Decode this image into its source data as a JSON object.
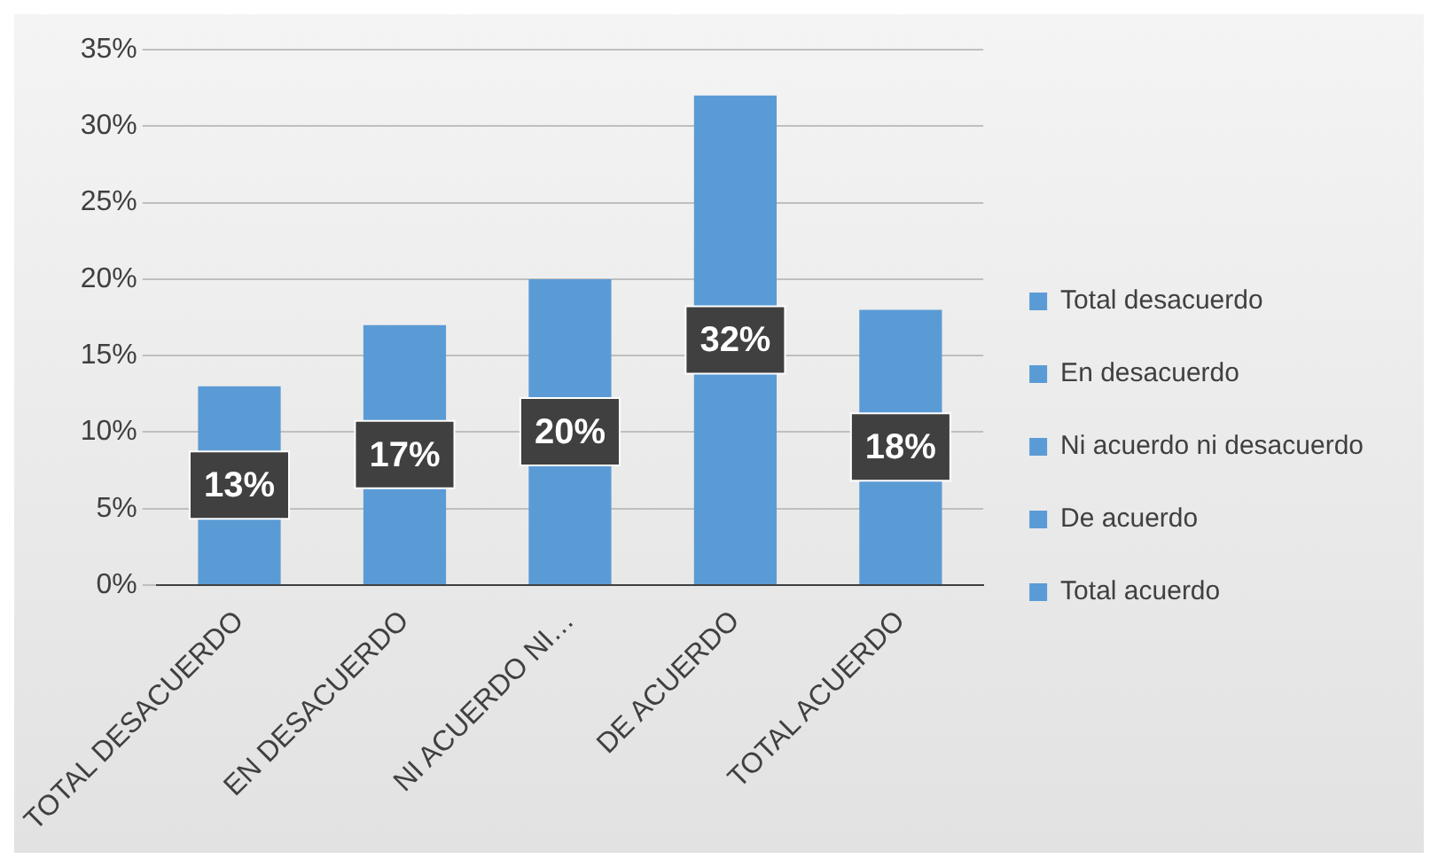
{
  "chart_data": {
    "type": "bar",
    "stacked": true,
    "categories": [
      "TOTAL DESACUERDO",
      "EN DESACUERDO",
      "NI ACUERDO NI…",
      "DE ACUERDO",
      "TOTAL ACUERDO"
    ],
    "series": [
      {
        "name": "Total desacuerdo",
        "color": "#5b9bd5",
        "values": [
          13,
          null,
          null,
          null,
          null
        ],
        "value_labels": [
          "13%",
          null,
          null,
          null,
          null
        ]
      },
      {
        "name": "En desacuerdo",
        "color": "#5b9bd5",
        "values": [
          null,
          17,
          null,
          null,
          null
        ],
        "value_labels": [
          null,
          "17%",
          null,
          null,
          null
        ]
      },
      {
        "name": "Ni acuerdo ni desacuerdo",
        "color": "#5b9bd5",
        "values": [
          null,
          null,
          20,
          null,
          null
        ],
        "value_labels": [
          null,
          null,
          "20%",
          null,
          null
        ]
      },
      {
        "name": "De acuerdo",
        "color": "#5b9bd5",
        "values": [
          null,
          null,
          null,
          32,
          null
        ],
        "value_labels": [
          null,
          null,
          null,
          "32%",
          null
        ]
      },
      {
        "name": "Total acuerdo",
        "color": "#5b9bd5",
        "values": [
          null,
          null,
          null,
          null,
          18
        ],
        "value_labels": [
          null,
          null,
          null,
          null,
          "18%"
        ]
      }
    ],
    "ylim": [
      0,
      35
    ],
    "yticks": [
      {
        "value": 0,
        "label": "0%"
      },
      {
        "value": 5,
        "label": "5%"
      },
      {
        "value": 10,
        "label": "10%"
      },
      {
        "value": 15,
        "label": "15%"
      },
      {
        "value": 20,
        "label": "20%"
      },
      {
        "value": 25,
        "label": "25%"
      },
      {
        "value": 30,
        "label": "30%"
      },
      {
        "value": 35,
        "label": "35%"
      }
    ],
    "grid": "y",
    "legend": "right"
  }
}
